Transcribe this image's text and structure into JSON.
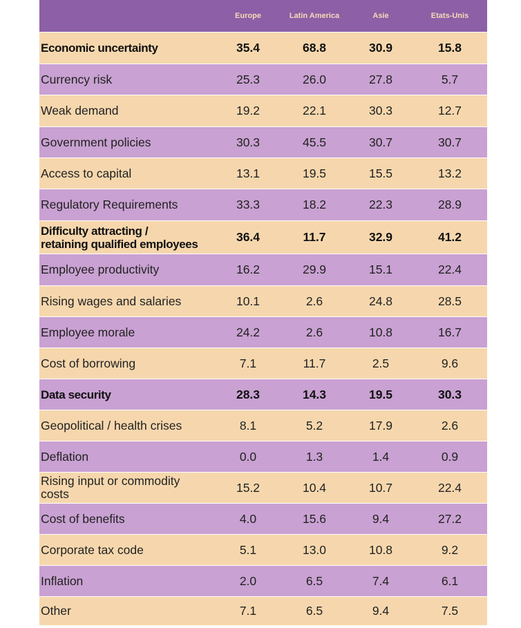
{
  "chart_data": {
    "type": "table",
    "columns": [
      "Europe",
      "Latin America",
      "Asie",
      "Etats-Unis"
    ],
    "rows": [
      {
        "label": "Economic uncertainty",
        "values": [
          "35.4",
          "68.8",
          "30.9",
          "15.8"
        ],
        "bold": true,
        "color": "#f6d7ad"
      },
      {
        "label": "Currency risk",
        "values": [
          "25.3",
          "26.0",
          "27.8",
          "5.7"
        ],
        "bold": false,
        "color": "#c9a1d2"
      },
      {
        "label": "Weak demand",
        "values": [
          "19.2",
          "22.1",
          "30.3",
          "12.7"
        ],
        "bold": false,
        "color": "#f6d7ad"
      },
      {
        "label": "Government policies",
        "values": [
          "30.3",
          "45.5",
          "30.7",
          "30.7"
        ],
        "bold": false,
        "color": "#c9a1d2"
      },
      {
        "label": "Access to capital",
        "values": [
          "13.1",
          "19.5",
          "15.5",
          "13.2"
        ],
        "bold": false,
        "color": "#f6d7ad"
      },
      {
        "label": "Regulatory Requirements",
        "values": [
          "33.3",
          "18.2",
          "22.3",
          "28.9"
        ],
        "bold": false,
        "color": "#c9a1d2"
      },
      {
        "label": "Difficulty attracting /\nretaining qualified employees",
        "values": [
          "36.4",
          "11.7",
          "32.9",
          "41.2"
        ],
        "bold": true,
        "color": "#f6d7ad"
      },
      {
        "label": "Employee productivity",
        "values": [
          "16.2",
          "29.9",
          "15.1",
          "22.4"
        ],
        "bold": false,
        "color": "#c9a1d2"
      },
      {
        "label": "Rising wages and salaries",
        "values": [
          "10.1",
          "2.6",
          "24.8",
          "28.5"
        ],
        "bold": false,
        "color": "#f6d7ad"
      },
      {
        "label": "Employee morale",
        "values": [
          "24.2",
          "2.6",
          "10.8",
          "16.7"
        ],
        "bold": false,
        "color": "#c9a1d2"
      },
      {
        "label": "Cost of borrowing",
        "values": [
          "7.1",
          "11.7",
          "2.5",
          "9.6"
        ],
        "bold": false,
        "color": "#f6d7ad"
      },
      {
        "label": "Data security",
        "values": [
          "28.3",
          "14.3",
          "19.5",
          "30.3"
        ],
        "bold": true,
        "color": "#c9a1d2"
      },
      {
        "label": "Geopolitical / health crises",
        "values": [
          "8.1",
          "5.2",
          "17.9",
          "2.6"
        ],
        "bold": false,
        "color": "#f6d7ad"
      },
      {
        "label": "Deflation",
        "values": [
          "0.0",
          "1.3",
          "1.4",
          "0.9"
        ],
        "bold": false,
        "color": "#c9a1d2"
      },
      {
        "label": "Rising input or commodity\ncosts",
        "values": [
          "15.2",
          "10.4",
          "10.7",
          "22.4"
        ],
        "bold": false,
        "color": "#f6d7ad"
      },
      {
        "label": "Cost of benefits",
        "values": [
          "4.0",
          "15.6",
          "9.4",
          "27.2"
        ],
        "bold": false,
        "color": "#c9a1d2"
      },
      {
        "label": "Corporate tax code",
        "values": [
          "5.1",
          "13.0",
          "10.8",
          "9.2"
        ],
        "bold": false,
        "color": "#f6d7ad"
      },
      {
        "label": "Inflation",
        "values": [
          "2.0",
          "6.5",
          "7.4",
          "6.1"
        ],
        "bold": false,
        "color": "#c9a1d2"
      },
      {
        "label": "Other",
        "values": [
          "7.1",
          "6.5",
          "9.4",
          "7.5"
        ],
        "bold": false,
        "color": "#f6d7ad"
      }
    ],
    "header_color": "#8c5fa6",
    "header_text_color": "#f3dcb6"
  }
}
